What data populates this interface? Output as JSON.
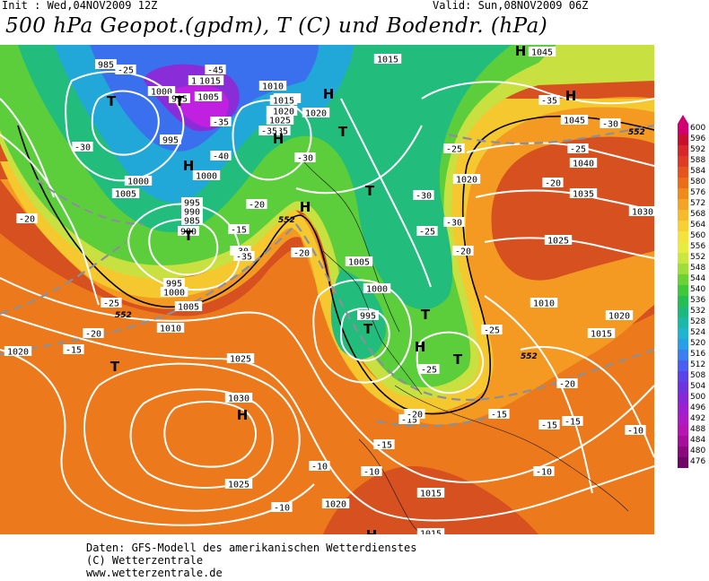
{
  "header": {
    "init": "Init : Wed,04NOV2009 12Z",
    "valid": "Valid: Sun,08NOV2009 06Z",
    "title": "500 hPa Geopot.(gpdm), T (C) und Bodendr. (hPa)"
  },
  "footer": {
    "line1": "Daten: GFS-Modell des amerikanischen Wetterdienstes",
    "line2": "(C) Wetterzentrale",
    "line3": "www.wetterzentrale.de"
  },
  "colorbar": {
    "levels": [
      "600",
      "596",
      "592",
      "588",
      "584",
      "580",
      "576",
      "572",
      "568",
      "564",
      "560",
      "556",
      "552",
      "548",
      "544",
      "540",
      "536",
      "532",
      "528",
      "524",
      "520",
      "516",
      "512",
      "508",
      "504",
      "500",
      "496",
      "492",
      "488",
      "484",
      "480",
      "476"
    ],
    "colors": [
      "#d1006e",
      "#c8102e",
      "#d8262a",
      "#e03a22",
      "#e6531c",
      "#ec6d18",
      "#f08a1a",
      "#f4a326",
      "#f7ba2c",
      "#f8d034",
      "#f6e23c",
      "#e9ec40",
      "#c8e840",
      "#9ede3a",
      "#6bd236",
      "#3ec83a",
      "#24be52",
      "#1cb87c",
      "#1ab8a8",
      "#20b4d0",
      "#2a9ee6",
      "#3a7ef0",
      "#4a5ef2",
      "#5a44ea",
      "#6e34e0",
      "#8628d8",
      "#9c20d0",
      "#ae1ac6",
      "#b814b4",
      "#a80e9c",
      "#8a0a7c",
      "#6e0666"
    ]
  },
  "map": {
    "fields": {
      "hot": "#d65020",
      "orange": "#ec7a1c",
      "amber": "#f49a22",
      "yellow": "#f6c830",
      "lime": "#c8e040",
      "green": "#5cce3c",
      "teal": "#22bc7c",
      "cyan": "#22a8d8",
      "blue": "#3a70ee",
      "violet": "#8a2cd8",
      "magenta": "#c020e0"
    },
    "pressure_labels": [
      "985",
      "1000",
      "995",
      "1005",
      "1010",
      "1015",
      "1020",
      "1025",
      "995",
      "1000",
      "1005",
      "1015",
      "1020",
      "1015",
      "1010",
      "1000",
      "995",
      "990",
      "985",
      "980",
      "995",
      "1000",
      "1005",
      "1010",
      "1005",
      "1000",
      "995",
      "1015",
      "1020",
      "1045",
      "1045",
      "1040",
      "1035",
      "1030",
      "1025",
      "1020",
      "1010",
      "1015",
      "1020",
      "1020",
      "1025",
      "1030",
      "1025",
      "1020",
      "1015",
      "1015",
      "1010",
      "1005",
      "1000",
      "995",
      "1000",
      "1010",
      "1015",
      "1015",
      "1015",
      "1020"
    ],
    "temp_labels": [
      "-25",
      "-45",
      "-35",
      "-40",
      "-30",
      "-35",
      "-30",
      "-20",
      "-15",
      "-25",
      "-20",
      "-15",
      "-35",
      "-30",
      "-30",
      "-25",
      "-25",
      "-20",
      "-20",
      "-25",
      "-30",
      "-35",
      "-20",
      "-20",
      "-25",
      "-15",
      "-20",
      "-15",
      "-10",
      "-10",
      "-10",
      "-10",
      "-15",
      "-15",
      "-20",
      "-25",
      "-30",
      "-35",
      "-15",
      "-10"
    ],
    "geopot_labels": [
      "552",
      "552",
      "552",
      "552"
    ],
    "symbols": {
      "high": "H",
      "low": "T"
    }
  }
}
